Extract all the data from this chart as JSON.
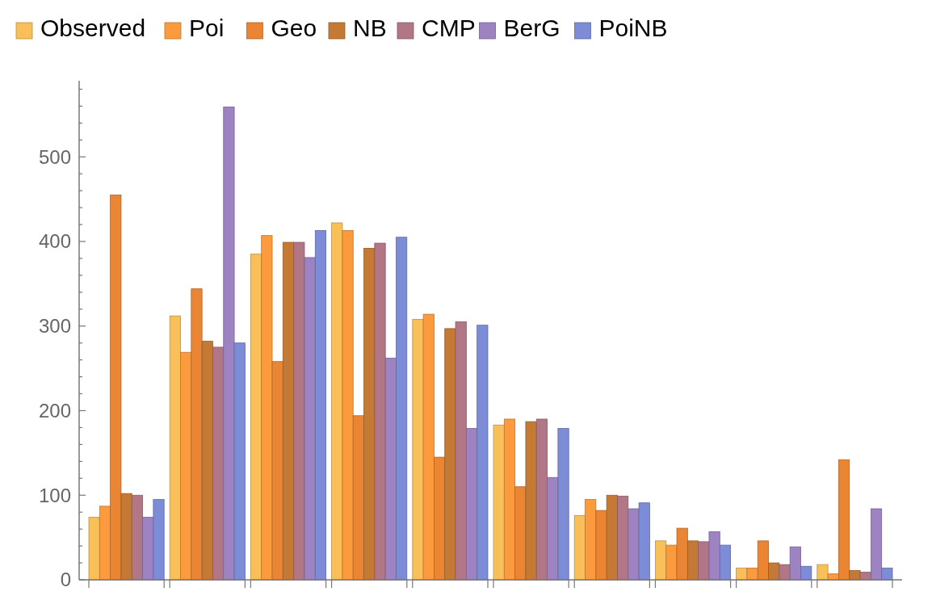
{
  "chart_data": {
    "type": "bar",
    "categories": [
      null,
      null,
      null,
      null,
      null,
      null,
      null,
      null,
      null,
      null
    ],
    "series": [
      {
        "name": "Observed",
        "color": "#f9c05a",
        "values": [
          74,
          312,
          385,
          422,
          308,
          183,
          76,
          46,
          14,
          18
        ]
      },
      {
        "name": "Poi",
        "color": "#fb9b3d",
        "values": [
          87,
          269,
          407,
          413,
          314,
          190,
          95,
          41,
          14,
          7
        ]
      },
      {
        "name": "Geo",
        "color": "#ea8534",
        "values": [
          455,
          344,
          258,
          194,
          145,
          110,
          82,
          61,
          46,
          142
        ]
      },
      {
        "name": "NB",
        "color": "#c47a34",
        "values": [
          102,
          282,
          399,
          392,
          297,
          187,
          100,
          46,
          20,
          11
        ]
      },
      {
        "name": "CMP",
        "color": "#b27786",
        "values": [
          100,
          275,
          399,
          398,
          305,
          190,
          99,
          45,
          18,
          9
        ]
      },
      {
        "name": "BerG",
        "color": "#9d83c2",
        "values": [
          74,
          559,
          381,
          262,
          179,
          121,
          84,
          57,
          39,
          84
        ]
      },
      {
        "name": "PoiNB",
        "color": "#7d8cd6",
        "values": [
          95,
          280,
          413,
          405,
          301,
          179,
          91,
          41,
          16,
          14
        ]
      }
    ],
    "ylim": [
      0,
      590
    ],
    "yticks": [
      0,
      {
        "value": 20,
        "label": null
      },
      {
        "value": 40,
        "label": null
      },
      {
        "value": 60,
        "label": null
      },
      {
        "value": 80,
        "label": null
      },
      100,
      {
        "value": 120,
        "label": null
      },
      {
        "value": 140,
        "label": null
      },
      {
        "value": 160,
        "label": null
      },
      {
        "value": 180,
        "label": null
      },
      200,
      {
        "value": 220,
        "label": null
      },
      {
        "value": 240,
        "label": null
      },
      {
        "value": 260,
        "label": null
      },
      {
        "value": 280,
        "label": null
      },
      300,
      {
        "value": 320,
        "label": null
      },
      {
        "value": 340,
        "label": null
      },
      {
        "value": 360,
        "label": null
      },
      {
        "value": 380,
        "label": null
      },
      400,
      {
        "value": 420,
        "label": null
      },
      {
        "value": 440,
        "label": null
      },
      {
        "value": 460,
        "label": null
      },
      {
        "value": 480,
        "label": null
      },
      500,
      {
        "value": 520,
        "label": null
      },
      {
        "value": 540,
        "label": null
      },
      {
        "value": 560,
        "label": null
      },
      {
        "value": 580,
        "label": null
      }
    ],
    "grid": false,
    "legend": "top"
  }
}
